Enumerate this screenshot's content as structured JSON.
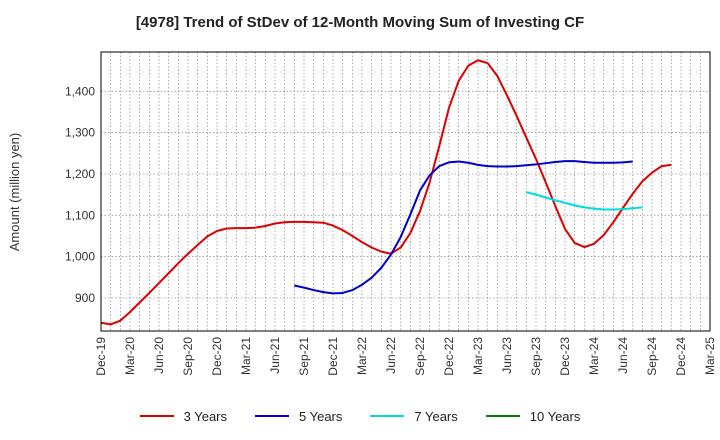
{
  "chart_data": {
    "type": "line",
    "title": "[4978]  Trend of StDev of 12-Month Moving Sum of Investing CF",
    "ylabel": "Amount (million yen)",
    "xlabel": "",
    "ylim": [
      820,
      1495
    ],
    "yticks": [
      900,
      1000,
      1100,
      1200,
      1300,
      1400
    ],
    "ytick_labels": [
      "900",
      "1,000",
      "1,100",
      "1,200",
      "1,300",
      "1,400"
    ],
    "x_categories": [
      "Dec-19",
      "Jan-20",
      "Feb-20",
      "Mar-20",
      "Apr-20",
      "May-20",
      "Jun-20",
      "Jul-20",
      "Aug-20",
      "Sep-20",
      "Oct-20",
      "Nov-20",
      "Dec-20",
      "Jan-21",
      "Feb-21",
      "Mar-21",
      "Apr-21",
      "May-21",
      "Jun-21",
      "Jul-21",
      "Aug-21",
      "Sep-21",
      "Oct-21",
      "Nov-21",
      "Dec-21",
      "Jan-22",
      "Feb-22",
      "Mar-22",
      "Apr-22",
      "May-22",
      "Jun-22",
      "Jul-22",
      "Aug-22",
      "Sep-22",
      "Oct-22",
      "Nov-22",
      "Dec-22",
      "Jan-23",
      "Feb-23",
      "Mar-23",
      "Apr-23",
      "May-23",
      "Jun-23",
      "Jul-23",
      "Aug-23",
      "Sep-23",
      "Oct-23",
      "Nov-23",
      "Dec-23",
      "Jan-24",
      "Feb-24",
      "Mar-24",
      "Apr-24",
      "May-24",
      "Jun-24",
      "Jul-24",
      "Aug-24",
      "Sep-24",
      "Oct-24",
      "Nov-24",
      "Dec-24",
      "Jan-25",
      "Feb-25",
      "Mar-25"
    ],
    "x_tick_labels": [
      "Dec-19",
      "Mar-20",
      "Jun-20",
      "Sep-20",
      "Dec-20",
      "Mar-21",
      "Jun-21",
      "Sep-21",
      "Dec-21",
      "Mar-22",
      "Jun-22",
      "Sep-22",
      "Dec-22",
      "Mar-23",
      "Jun-23",
      "Sep-23",
      "Dec-23",
      "Mar-24",
      "Jun-24",
      "Sep-24",
      "Dec-24",
      "Mar-25"
    ],
    "grid": true,
    "legend_position": "bottom",
    "series": [
      {
        "name": "3 Years",
        "color": "#dd0000",
        "start": "Dec-19",
        "values": [
          840,
          836,
          845,
          866,
          889,
          912,
          936,
          960,
          984,
          1007,
          1028,
          1049,
          1062,
          1068,
          1069,
          1069,
          1070,
          1074,
          1080,
          1083,
          1084,
          1084,
          1083,
          1082,
          1075,
          1064,
          1050,
          1035,
          1022,
          1012,
          1007,
          1022,
          1057,
          1110,
          1180,
          1268,
          1360,
          1425,
          1462,
          1475,
          1468,
          1437,
          1390,
          1340,
          1288,
          1236,
          1180,
          1122,
          1067,
          1033,
          1023,
          1031,
          1052,
          1083,
          1118,
          1152,
          1182,
          1203,
          1219,
          1222
        ]
      },
      {
        "name": "5 Years",
        "color": "#0000cc",
        "start": "Aug-21",
        "values": [
          930,
          925,
          919,
          914,
          911,
          912,
          919,
          932,
          949,
          973,
          1005,
          1047,
          1102,
          1160,
          1197,
          1219,
          1228,
          1230,
          1227,
          1222,
          1219,
          1218,
          1218,
          1219,
          1221,
          1223,
          1226,
          1229,
          1231,
          1231,
          1229,
          1227,
          1227,
          1227,
          1228,
          1230
        ]
      },
      {
        "name": "7 Years",
        "color": "#00dddd",
        "start": "Aug-23",
        "values": [
          1156,
          1150,
          1143,
          1136,
          1130,
          1124,
          1119,
          1116,
          1114,
          1114,
          1115,
          1117,
          1119
        ]
      },
      {
        "name": "10 Years",
        "color": "#008000",
        "start": "Dec-19",
        "values": []
      }
    ]
  }
}
